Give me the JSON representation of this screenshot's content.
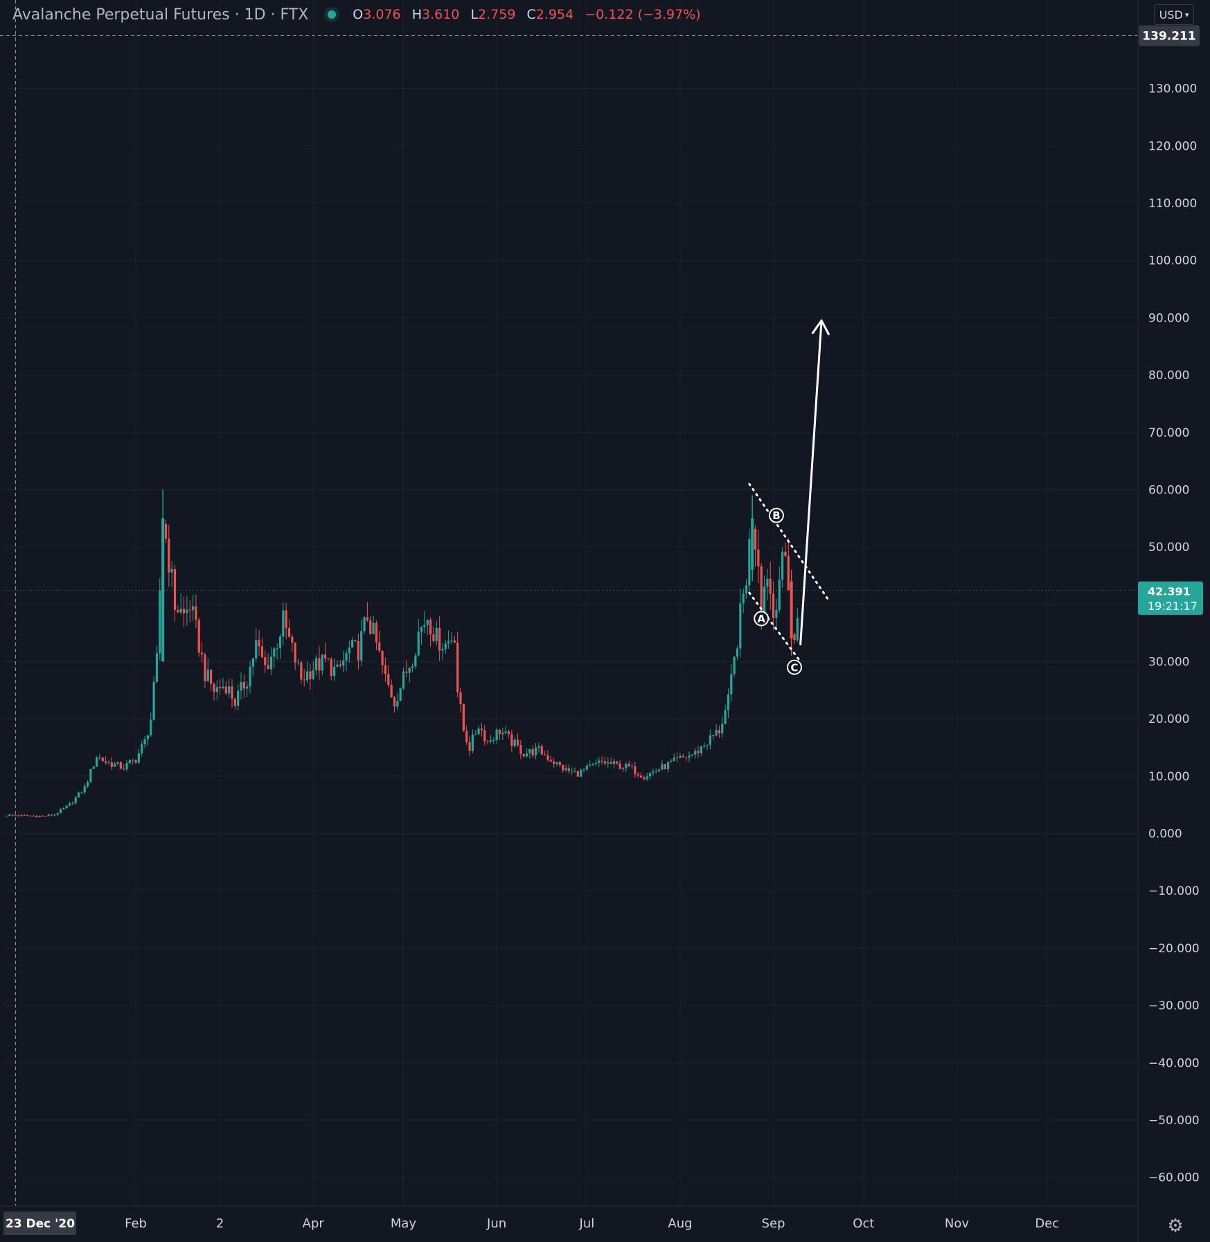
{
  "header": {
    "title": "Avalanche Perpetual Futures · 1D · FTX",
    "o_label": "O",
    "o_value": "3.076",
    "h_label": "H",
    "h_value": "3.610",
    "l_label": "L",
    "l_value": "2.759",
    "c_label": "C",
    "c_value": "2.954",
    "change": "−0.122 (−3.97%)"
  },
  "currency_selector": "USD",
  "settings_icon": "gear-icon",
  "colors": {
    "background": "#131722",
    "up": "#26a69a",
    "down": "#ef5350",
    "grid": "#1e222d",
    "axis_text": "#d1d4dc"
  },
  "chart_data": {
    "type": "candlestick",
    "x_range": [
      "2020-12-19",
      "2021-12-31"
    ],
    "ylim": [
      -65,
      140
    ],
    "y_ticks": [
      130,
      120,
      110,
      100,
      90,
      80,
      70,
      60,
      50,
      40,
      30,
      20,
      10,
      0,
      -10,
      -20,
      -30,
      -40,
      -50,
      -60
    ],
    "y_tick_labels": [
      "130.000",
      "120.000",
      "110.000",
      "100.000",
      "90.000",
      "80.000",
      "70.000",
      "60.000",
      "50.000",
      "40.000",
      "30.000",
      "20.000",
      "10.000",
      "0.000",
      "−10.000",
      "−20.000",
      "−30.000",
      "−40.000",
      "−50.000",
      "−60.000"
    ],
    "x_ticks": [
      {
        "date": "2021-02-01",
        "label": "Feb"
      },
      {
        "date": "2021-03-01",
        "label": "2"
      },
      {
        "date": "2021-04-01",
        "label": "Apr"
      },
      {
        "date": "2021-05-01",
        "label": "May"
      },
      {
        "date": "2021-06-01",
        "label": "Jun"
      },
      {
        "date": "2021-07-01",
        "label": "Jul"
      },
      {
        "date": "2021-08-01",
        "label": "Aug"
      },
      {
        "date": "2021-09-01",
        "label": "Sep"
      },
      {
        "date": "2021-10-01",
        "label": "Oct"
      },
      {
        "date": "2021-11-01",
        "label": "Nov"
      },
      {
        "date": "2021-12-01",
        "label": "Dec"
      }
    ],
    "crosshair": {
      "date": "2020-12-23",
      "date_label": "23 Dec '20",
      "price": 139.211,
      "price_label": "139.211"
    },
    "last_price": {
      "value": 42.391,
      "label": "42.391",
      "countdown": "19:21:17"
    },
    "grid": true,
    "path": [
      [
        "2020-12-20",
        3.2
      ],
      [
        "2021-01-01",
        3.0
      ],
      [
        "2021-01-05",
        3.3
      ],
      [
        "2021-01-10",
        5.0
      ],
      [
        "2021-01-15",
        8.0
      ],
      [
        "2021-01-19",
        13.5
      ],
      [
        "2021-01-22",
        12.5
      ],
      [
        "2021-01-28",
        11.5
      ],
      [
        "2021-02-01",
        13.0
      ],
      [
        "2021-02-04",
        16.0
      ],
      [
        "2021-02-06",
        20.0
      ],
      [
        "2021-02-08",
        30.0
      ],
      [
        "2021-02-10",
        55.0
      ],
      [
        "2021-02-12",
        48.0
      ],
      [
        "2021-02-14",
        40.0
      ],
      [
        "2021-02-17",
        38.0
      ],
      [
        "2021-02-19",
        40.0
      ],
      [
        "2021-02-22",
        33.0
      ],
      [
        "2021-02-24",
        28.0
      ],
      [
        "2021-02-27",
        25.0
      ],
      [
        "2021-03-03",
        26.0
      ],
      [
        "2021-03-06",
        23.0
      ],
      [
        "2021-03-10",
        27.0
      ],
      [
        "2021-03-13",
        33.0
      ],
      [
        "2021-03-16",
        29.0
      ],
      [
        "2021-03-19",
        32.0
      ],
      [
        "2021-03-22",
        37.0
      ],
      [
        "2021-03-25",
        32.0
      ],
      [
        "2021-03-28",
        27.0
      ],
      [
        "2021-04-01",
        29.0
      ],
      [
        "2021-04-05",
        30.0
      ],
      [
        "2021-04-09",
        28.0
      ],
      [
        "2021-04-13",
        32.0
      ],
      [
        "2021-04-16",
        32.0
      ],
      [
        "2021-04-19",
        38.0
      ],
      [
        "2021-04-22",
        33.0
      ],
      [
        "2021-04-25",
        27.0
      ],
      [
        "2021-04-28",
        23.0
      ],
      [
        "2021-05-01",
        27.0
      ],
      [
        "2021-05-04",
        31.0
      ],
      [
        "2021-05-06",
        35.0
      ],
      [
        "2021-05-09",
        38.0
      ],
      [
        "2021-05-12",
        34.0
      ],
      [
        "2021-05-15",
        33.0
      ],
      [
        "2021-05-18",
        35.0
      ],
      [
        "2021-05-19",
        25.0
      ],
      [
        "2021-05-21",
        18.0
      ],
      [
        "2021-05-23",
        15.0
      ],
      [
        "2021-05-26",
        19.0
      ],
      [
        "2021-05-29",
        16.0
      ],
      [
        "2021-06-02",
        18.0
      ],
      [
        "2021-06-06",
        16.0
      ],
      [
        "2021-06-10",
        14.0
      ],
      [
        "2021-06-15",
        14.5
      ],
      [
        "2021-06-20",
        12.5
      ],
      [
        "2021-06-24",
        11.0
      ],
      [
        "2021-06-28",
        10.5
      ],
      [
        "2021-07-02",
        11.5
      ],
      [
        "2021-07-06",
        12.5
      ],
      [
        "2021-07-10",
        12.0
      ],
      [
        "2021-07-15",
        11.5
      ],
      [
        "2021-07-20",
        10.0
      ],
      [
        "2021-07-24",
        11.0
      ],
      [
        "2021-07-28",
        12.0
      ],
      [
        "2021-08-01",
        13.0
      ],
      [
        "2021-08-06",
        14.0
      ],
      [
        "2021-08-10",
        16.0
      ],
      [
        "2021-08-14",
        18.0
      ],
      [
        "2021-08-17",
        23.0
      ],
      [
        "2021-08-19",
        30.0
      ],
      [
        "2021-08-21",
        38.0
      ],
      [
        "2021-08-23",
        45.0
      ],
      [
        "2021-08-25",
        55.0
      ],
      [
        "2021-08-27",
        48.0
      ],
      [
        "2021-08-28",
        40.0
      ],
      [
        "2021-08-30",
        46.0
      ],
      [
        "2021-09-01",
        38.0
      ],
      [
        "2021-09-03",
        45.0
      ],
      [
        "2021-09-05",
        48.0
      ],
      [
        "2021-09-06",
        44.0
      ],
      [
        "2021-09-07",
        35.0
      ],
      [
        "2021-09-08",
        33.0
      ],
      [
        "2021-09-09",
        38.0
      ]
    ],
    "candles": [
      {
        "date": "2021-02-10",
        "open": 30,
        "high": 60,
        "low": 30,
        "close": 55
      },
      {
        "date": "2021-08-25",
        "open": 46,
        "high": 59,
        "low": 44,
        "close": 55
      },
      {
        "date": "2021-09-07",
        "open": 44,
        "high": 46,
        "low": 31,
        "close": 34
      }
    ],
    "annotations": {
      "wave_labels": [
        {
          "label": "A",
          "date": "2021-08-28",
          "price": 37.5
        },
        {
          "label": "B",
          "date": "2021-09-02",
          "price": 55.5
        },
        {
          "label": "C",
          "date": "2021-09-08",
          "price": 29.0
        }
      ],
      "upper_trendline": [
        [
          "2021-08-24",
          61.0
        ],
        [
          "2021-09-19",
          41.0
        ]
      ],
      "lower_trendline": [
        [
          "2021-08-24",
          42.0
        ],
        [
          "2021-09-10",
          30.0
        ]
      ],
      "arrow": [
        [
          "2021-09-10",
          33.0
        ],
        [
          "2021-09-17",
          89.5
        ]
      ]
    }
  }
}
